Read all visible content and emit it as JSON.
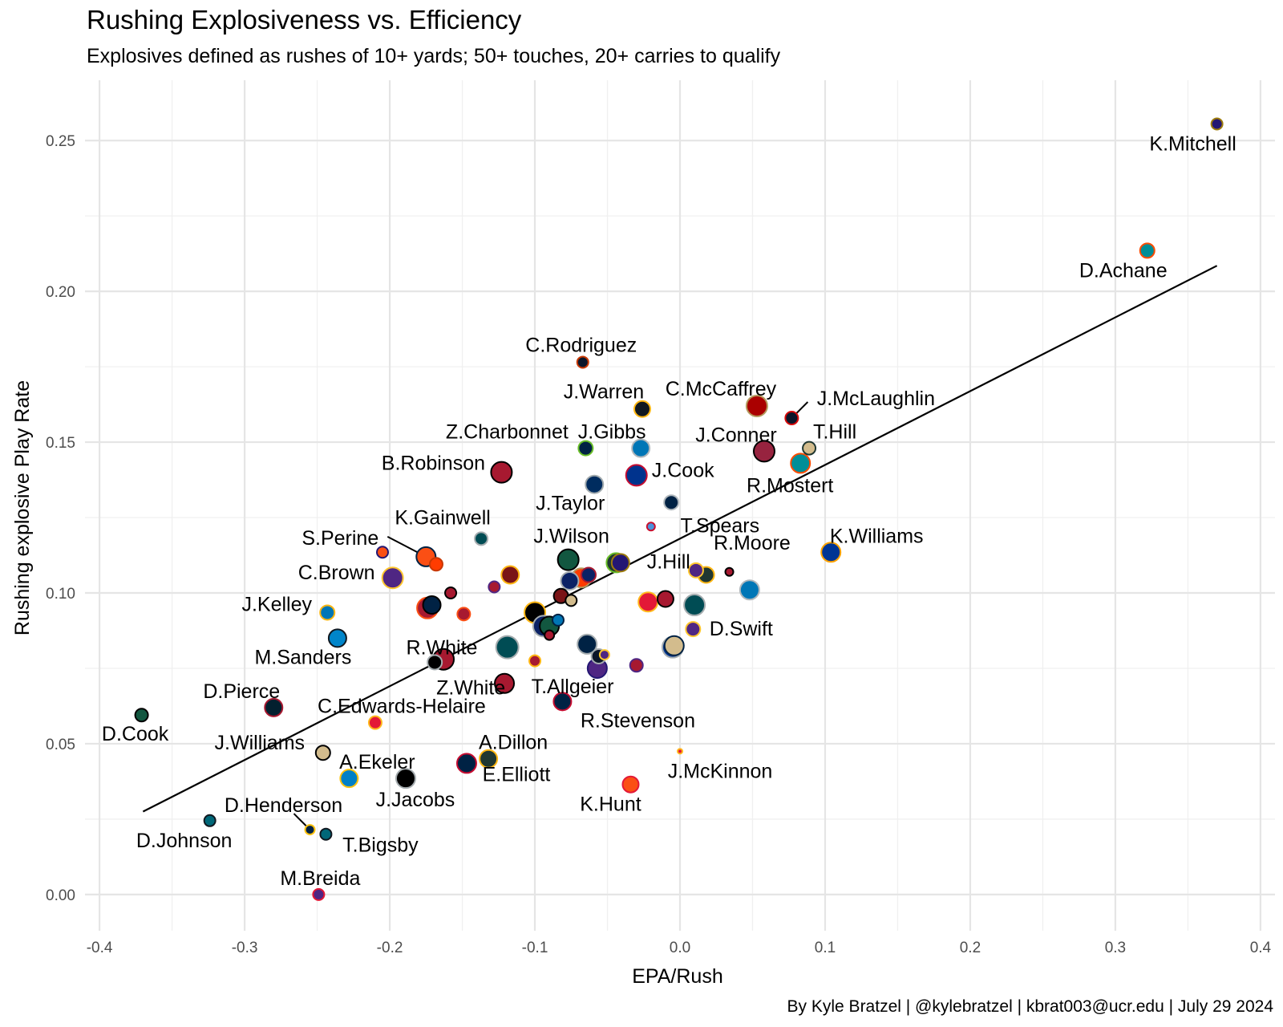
{
  "chart_data": {
    "type": "scatter",
    "title": "Rushing Explosiveness vs. Efficiency",
    "subtitle": "Explosives defined as rushes of 10+ yards; 50+ touches, 20+ carries to qualify",
    "xlabel": "EPA/Rush",
    "ylabel": "Rushing explosive Play Rate",
    "caption": "By Kyle Bratzel | @kylebratzel | kbrat003@ucr.edu | July 29 2024",
    "xlim": [
      -0.41,
      0.41
    ],
    "ylim": [
      -0.012,
      0.27
    ],
    "x_ticks": [
      -0.4,
      -0.3,
      -0.2,
      -0.1,
      0.0,
      0.1,
      0.2,
      0.3,
      0.4
    ],
    "x_tick_labels": [
      "-0.4",
      "-0.3",
      "-0.2",
      "-0.1",
      "0.0",
      "0.1",
      "0.2",
      "0.3",
      "0.4"
    ],
    "y_ticks": [
      0.0,
      0.05,
      0.1,
      0.15,
      0.2,
      0.25
    ],
    "y_tick_labels": [
      "0.00",
      "0.05",
      "0.10",
      "0.15",
      "0.20",
      "0.25"
    ],
    "grid": true,
    "trend_line": {
      "x": [
        -0.37,
        0.37
      ],
      "y": [
        0.0275,
        0.2085
      ]
    },
    "points": [
      {
        "label": "K.Mitchell",
        "x": 0.37,
        "y": 0.2555,
        "size": 7,
        "fill": "#241773",
        "stroke": "#9E7C0C",
        "label_dx": -30,
        "label_dy": 33
      },
      {
        "label": "D.Achane",
        "x": 0.322,
        "y": 0.2135,
        "size": 9,
        "fill": "#008E97",
        "stroke": "#FC4C02",
        "label_dx": -30,
        "label_dy": 33
      },
      {
        "label": "C.Rodriguez",
        "x": -0.067,
        "y": 0.1765,
        "size": 7,
        "fill": "#0B162A",
        "stroke": "#C83803",
        "label_dx": -2,
        "label_dy": -13
      },
      {
        "label": "J.Warren",
        "x": -0.026,
        "y": 0.161,
        "size": 10,
        "fill": "#101820",
        "stroke": "#FFB612",
        "label_dx": -48,
        "label_dy": -13
      },
      {
        "label": "C.McCaffrey",
        "x": 0.053,
        "y": 0.162,
        "size": 13,
        "fill": "#AA0000",
        "stroke": "#B3995D",
        "label_dx": -45,
        "label_dy": -13
      },
      {
        "label": "J.McLaughlin",
        "x": 0.077,
        "y": 0.158,
        "size": 8,
        "fill": "#0B162A",
        "stroke": "#D50A0A",
        "label_dx": 105,
        "label_dy": -16,
        "leader": [
          20,
          -20
        ]
      },
      {
        "label": "T.Hill",
        "x": 0.089,
        "y": 0.148,
        "size": 8,
        "fill": "#D3BC8D",
        "stroke": "#203731",
        "label_dx": 32,
        "label_dy": -12
      },
      {
        "label": "Z.Charbonnet",
        "x": -0.065,
        "y": 0.148,
        "size": 9,
        "fill": "#002244",
        "stroke": "#69BE28",
        "label_dx": -98,
        "label_dy": -12
      },
      {
        "label": "J.Gibbs",
        "x": -0.027,
        "y": 0.148,
        "size": 11,
        "fill": "#0076B6",
        "stroke": "#B0B7BC",
        "label_dx": -36,
        "label_dy": -12
      },
      {
        "label": "J.Conner",
        "x": 0.058,
        "y": 0.147,
        "size": 13,
        "fill": "#97233F",
        "stroke": "#000000",
        "label_dx": -35,
        "label_dy": -12
      },
      {
        "label": "R.Mostert",
        "x": 0.083,
        "y": 0.143,
        "size": 12,
        "fill": "#008E97",
        "stroke": "#FC4C02",
        "label_dx": -13,
        "label_dy": 36
      },
      {
        "label": "B.Robinson",
        "x": -0.123,
        "y": 0.14,
        "size": 13,
        "fill": "#A71930",
        "stroke": "#000000",
        "label_dx": -85,
        "label_dy": -3
      },
      {
        "label": "J.Cook",
        "x": -0.03,
        "y": 0.139,
        "size": 13,
        "fill": "#00338D",
        "stroke": "#C60C30",
        "label_dx": 58,
        "label_dy": 2
      },
      {
        "label": "J.Taylor",
        "x": -0.059,
        "y": 0.136,
        "size": 11,
        "fill": "#002C5F",
        "stroke": "#A2AAAD",
        "label_dx": -30,
        "label_dy": 32
      },
      {
        "label": "",
        "x": -0.006,
        "y": 0.13,
        "size": 9,
        "fill": "#002244",
        "stroke": "#B0B7BC",
        "label_dx": 0,
        "label_dy": 0
      },
      {
        "label": "T.Spears",
        "x": -0.02,
        "y": 0.122,
        "size": 5,
        "fill": "#4B92DB",
        "stroke": "#C8102E",
        "label_dx": 86,
        "label_dy": 7
      },
      {
        "label": "K.Gainwell",
        "x": -0.137,
        "y": 0.118,
        "size": 8,
        "fill": "#004C54",
        "stroke": "#A5ACAF",
        "label_dx": -48,
        "label_dy": -18
      },
      {
        "label": "S.Perine",
        "x": -0.175,
        "y": 0.112,
        "size": 12,
        "fill": "#FB4F14",
        "stroke": "#002244",
        "label_dx": -107,
        "label_dy": -15,
        "leader": [
          -48,
          -25
        ]
      },
      {
        "label": "K.Williams",
        "x": 0.104,
        "y": 0.1135,
        "size": 12,
        "fill": "#003594",
        "stroke": "#FFA300",
        "label_dx": 57,
        "label_dy": -12
      },
      {
        "label": "J.Wilson",
        "x": -0.077,
        "y": 0.111,
        "size": 13,
        "fill": "#125740",
        "stroke": "#000000",
        "label_dx": 4,
        "label_dy": -21
      },
      {
        "label": "J.Hill",
        "x": -0.041,
        "y": 0.11,
        "size": 11,
        "fill": "#241773",
        "stroke": "#9E7C0C",
        "label_dx": 60,
        "label_dy": 7
      },
      {
        "label": "R.Moore",
        "x": 0.011,
        "y": 0.1075,
        "size": 9,
        "fill": "#4F2683",
        "stroke": "#FFC62F",
        "label_dx": 70,
        "label_dy": -26
      },
      {
        "label": "C.Brown",
        "x": -0.198,
        "y": 0.105,
        "size": 13,
        "fill": "#4F2683",
        "stroke": "#FFC62F",
        "label_dx": -70,
        "label_dy": 2
      },
      {
        "label": "J.Kelley",
        "x": -0.243,
        "y": 0.0935,
        "size": 9,
        "fill": "#0076B6",
        "stroke": "#FFB612",
        "label_dx": -63,
        "label_dy": -2
      },
      {
        "label": "D.Swift",
        "x": 0.009,
        "y": 0.088,
        "size": 9,
        "fill": "#4F2683",
        "stroke": "#FFC62F",
        "label_dx": 60,
        "label_dy": 8
      },
      {
        "label": "M.Sanders",
        "x": -0.236,
        "y": 0.085,
        "size": 11,
        "fill": "#0085CA",
        "stroke": "#101820",
        "label_dx": -43,
        "label_dy": 32
      },
      {
        "label": "R.White",
        "x": -0.163,
        "y": 0.078,
        "size": 13,
        "fill": "#A71930",
        "stroke": "#000000",
        "label_dx": -2,
        "label_dy": -6
      },
      {
        "label": "Z.White",
        "x": -0.169,
        "y": 0.077,
        "size": 9,
        "fill": "#000000",
        "stroke": "#A5ACAF",
        "label_dx": 45,
        "label_dy": 40
      },
      {
        "label": "T.Allgeier",
        "x": -0.121,
        "y": 0.07,
        "size": 12,
        "fill": "#A71930",
        "stroke": "#000000",
        "label_dx": 85,
        "label_dy": 12
      },
      {
        "label": "D.Pierce",
        "x": -0.28,
        "y": 0.062,
        "size": 11,
        "fill": "#03202F",
        "stroke": "#A71930",
        "label_dx": -40,
        "label_dy": -12
      },
      {
        "label": "C.Edwards-Helaire",
        "x": -0.21,
        "y": 0.057,
        "size": 8,
        "fill": "#E31837",
        "stroke": "#FFB81C",
        "label_dx": 33,
        "label_dy": -12
      },
      {
        "label": "R.Stevenson",
        "x": -0.081,
        "y": 0.064,
        "size": 11,
        "fill": "#002244",
        "stroke": "#C60C30",
        "label_dx": 94,
        "label_dy": 32
      },
      {
        "label": "D.Cook",
        "x": -0.371,
        "y": 0.0595,
        "size": 8,
        "fill": "#125740",
        "stroke": "#000000",
        "label_dx": -8,
        "label_dy": 32
      },
      {
        "label": "J.Williams",
        "x": -0.246,
        "y": 0.047,
        "size": 9,
        "fill": "#D3BC8D",
        "stroke": "#000000",
        "label_dx": -79,
        "label_dy": -4
      },
      {
        "label": "A.Ekeler",
        "x": -0.228,
        "y": 0.0385,
        "size": 11,
        "fill": "#0080C6",
        "stroke": "#FFC20E",
        "label_dx": 35,
        "label_dy": -12
      },
      {
        "label": "A.Dillon",
        "x": -0.132,
        "y": 0.045,
        "size": 11,
        "fill": "#203731",
        "stroke": "#FFB612",
        "label_dx": 31,
        "label_dy": -12
      },
      {
        "label": "E.Elliott",
        "x": -0.147,
        "y": 0.0435,
        "size": 12,
        "fill": "#002244",
        "stroke": "#C60C30",
        "label_dx": 62,
        "label_dy": 22
      },
      {
        "label": "J.Jacobs",
        "x": -0.189,
        "y": 0.0385,
        "size": 12,
        "fill": "#000000",
        "stroke": "#A5ACAF",
        "label_dx": 12,
        "label_dy": 35
      },
      {
        "label": "J.McKinnon",
        "x": 0.0,
        "y": 0.0475,
        "size": 3,
        "fill": "#E31837",
        "stroke": "#FFB81C",
        "label_dx": 50,
        "label_dy": 33
      },
      {
        "label": "K.Hunt",
        "x": -0.034,
        "y": 0.0365,
        "size": 10,
        "fill": "#FB4F14",
        "stroke": "#E31837",
        "label_dx": -25,
        "label_dy": 33
      },
      {
        "label": "D.Henderson",
        "x": -0.255,
        "y": 0.0215,
        "size": 6,
        "fill": "#002244",
        "stroke": "#FFC20E",
        "label_dx": -33,
        "label_dy": -22,
        "leader": [
          -20,
          -20
        ]
      },
      {
        "label": "T.Bigsby",
        "x": -0.244,
        "y": 0.02,
        "size": 7,
        "fill": "#006778",
        "stroke": "#101820",
        "label_dx": 68,
        "label_dy": 22
      },
      {
        "label": "D.Johnson",
        "x": -0.324,
        "y": 0.0245,
        "size": 7,
        "fill": "#006778",
        "stroke": "#101820",
        "label_dx": -32,
        "label_dy": 33
      },
      {
        "label": "M.Breida",
        "x": -0.249,
        "y": 0.0,
        "size": 7,
        "fill": "#4F2683",
        "stroke": "#E31837",
        "label_dx": 2,
        "label_dy": -12
      },
      {
        "label": "",
        "x": -0.205,
        "y": 0.1135,
        "size": 7,
        "fill": "#FB4F14",
        "stroke": "#241773",
        "label_dx": 0,
        "label_dy": 0
      },
      {
        "label": "",
        "x": -0.168,
        "y": 0.1095,
        "size": 8,
        "fill": "#FF3C00",
        "stroke": "#C83803",
        "label_dx": 0,
        "label_dy": 0
      },
      {
        "label": "",
        "x": -0.117,
        "y": 0.106,
        "size": 11,
        "fill": "#7A1416",
        "stroke": "#FFB612",
        "label_dx": 0,
        "label_dy": 0
      },
      {
        "label": "",
        "x": -0.158,
        "y": 0.1,
        "size": 7,
        "fill": "#A71930",
        "stroke": "#000000",
        "label_dx": 0,
        "label_dy": 0
      },
      {
        "label": "",
        "x": -0.128,
        "y": 0.102,
        "size": 7,
        "fill": "#A71930",
        "stroke": "#4F2683",
        "label_dx": 0,
        "label_dy": 0
      },
      {
        "label": "",
        "x": -0.174,
        "y": 0.095,
        "size": 13,
        "fill": "#A71930",
        "stroke": "#FB4F14",
        "label_dx": 0,
        "label_dy": 0
      },
      {
        "label": "",
        "x": -0.171,
        "y": 0.096,
        "size": 11,
        "fill": "#002244",
        "stroke": "#000000",
        "label_dx": 0,
        "label_dy": 0
      },
      {
        "label": "",
        "x": -0.149,
        "y": 0.093,
        "size": 8,
        "fill": "#A71930",
        "stroke": "#FB4F14",
        "label_dx": 0,
        "label_dy": 0
      },
      {
        "label": "",
        "x": -0.068,
        "y": 0.105,
        "size": 12,
        "fill": "#FF3C00",
        "stroke": "#B3995D",
        "label_dx": 0,
        "label_dy": 0
      },
      {
        "label": "",
        "x": -0.076,
        "y": 0.104,
        "size": 11,
        "fill": "#0B2265",
        "stroke": "#A5ACAF",
        "label_dx": 0,
        "label_dy": 0
      },
      {
        "label": "",
        "x": -0.082,
        "y": 0.099,
        "size": 9,
        "fill": "#7A1416",
        "stroke": "#000000",
        "label_dx": 0,
        "label_dy": 0
      },
      {
        "label": "",
        "x": -0.075,
        "y": 0.0975,
        "size": 7,
        "fill": "#D3BC8D",
        "stroke": "#000000",
        "label_dx": 0,
        "label_dy": 0
      },
      {
        "label": "",
        "x": -0.1,
        "y": 0.0935,
        "size": 13,
        "fill": "#000000",
        "stroke": "#FFB612",
        "label_dx": 0,
        "label_dy": 0
      },
      {
        "label": "",
        "x": -0.094,
        "y": 0.089,
        "size": 13,
        "fill": "#0B2265",
        "stroke": "#A5ACAF",
        "label_dx": 0,
        "label_dy": 0
      },
      {
        "label": "",
        "x": -0.09,
        "y": 0.089,
        "size": 12,
        "fill": "#125740",
        "stroke": "#000000",
        "label_dx": 0,
        "label_dy": 0
      },
      {
        "label": "",
        "x": -0.084,
        "y": 0.091,
        "size": 7,
        "fill": "#0076B6",
        "stroke": "#002244",
        "label_dx": 0,
        "label_dy": 0
      },
      {
        "label": "",
        "x": -0.09,
        "y": 0.086,
        "size": 6,
        "fill": "#A71930",
        "stroke": "#000000",
        "label_dx": 0,
        "label_dy": 0
      },
      {
        "label": "",
        "x": -0.119,
        "y": 0.082,
        "size": 14,
        "fill": "#004C54",
        "stroke": "#A5ACAF",
        "label_dx": 0,
        "label_dy": 0
      },
      {
        "label": "",
        "x": -0.1,
        "y": 0.0775,
        "size": 7,
        "fill": "#A71930",
        "stroke": "#FFB612",
        "label_dx": 0,
        "label_dy": 0
      },
      {
        "label": "",
        "x": -0.064,
        "y": 0.083,
        "size": 12,
        "fill": "#002244",
        "stroke": "#A5ACAF",
        "label_dx": 0,
        "label_dy": 0
      },
      {
        "label": "",
        "x": -0.056,
        "y": 0.079,
        "size": 9,
        "fill": "#0B162A",
        "stroke": "#A5ACAF",
        "label_dx": 0,
        "label_dy": 0
      },
      {
        "label": "",
        "x": -0.052,
        "y": 0.0795,
        "size": 6,
        "fill": "#4F2683",
        "stroke": "#FFC62F",
        "label_dx": 0,
        "label_dy": 0
      },
      {
        "label": "",
        "x": -0.057,
        "y": 0.075,
        "size": 12,
        "fill": "#4F2683",
        "stroke": "#241773",
        "label_dx": 0,
        "label_dy": 0
      },
      {
        "label": "",
        "x": -0.03,
        "y": 0.076,
        "size": 8,
        "fill": "#A71930",
        "stroke": "#4F2683",
        "label_dx": 0,
        "label_dy": 0
      },
      {
        "label": "",
        "x": -0.022,
        "y": 0.097,
        "size": 12,
        "fill": "#E31837",
        "stroke": "#FFB81C",
        "label_dx": 0,
        "label_dy": 0
      },
      {
        "label": "",
        "x": -0.01,
        "y": 0.098,
        "size": 10,
        "fill": "#A71930",
        "stroke": "#000000",
        "label_dx": 0,
        "label_dy": 0
      },
      {
        "label": "",
        "x": -0.044,
        "y": 0.11,
        "size": 12,
        "fill": "#203731",
        "stroke": "#69BE28",
        "label_dx": 0,
        "label_dy": 0
      },
      {
        "label": "",
        "x": -0.063,
        "y": 0.106,
        "size": 9,
        "fill": "#0B2265",
        "stroke": "#A71930",
        "label_dx": 0,
        "label_dy": 0
      },
      {
        "label": "",
        "x": 0.01,
        "y": 0.096,
        "size": 13,
        "fill": "#004C54",
        "stroke": "#A5ACAF",
        "label_dx": 0,
        "label_dy": 0
      },
      {
        "label": "",
        "x": -0.005,
        "y": 0.082,
        "size": 13,
        "fill": "#003594",
        "stroke": "#A5ACAF",
        "label_dx": 0,
        "label_dy": 0
      },
      {
        "label": "",
        "x": -0.004,
        "y": 0.0825,
        "size": 12,
        "fill": "#D3BC8D",
        "stroke": "#002244",
        "label_dx": 0,
        "label_dy": 0
      },
      {
        "label": "",
        "x": 0.018,
        "y": 0.106,
        "size": 10,
        "fill": "#203731",
        "stroke": "#FFB612",
        "label_dx": 0,
        "label_dy": 0
      },
      {
        "label": "",
        "x": 0.034,
        "y": 0.107,
        "size": 5,
        "fill": "#A71930",
        "stroke": "#000000",
        "label_dx": 0,
        "label_dy": 0
      },
      {
        "label": "",
        "x": 0.048,
        "y": 0.101,
        "size": 12,
        "fill": "#0076B6",
        "stroke": "#B0B7BC",
        "label_dx": 0,
        "label_dy": 0
      }
    ]
  }
}
